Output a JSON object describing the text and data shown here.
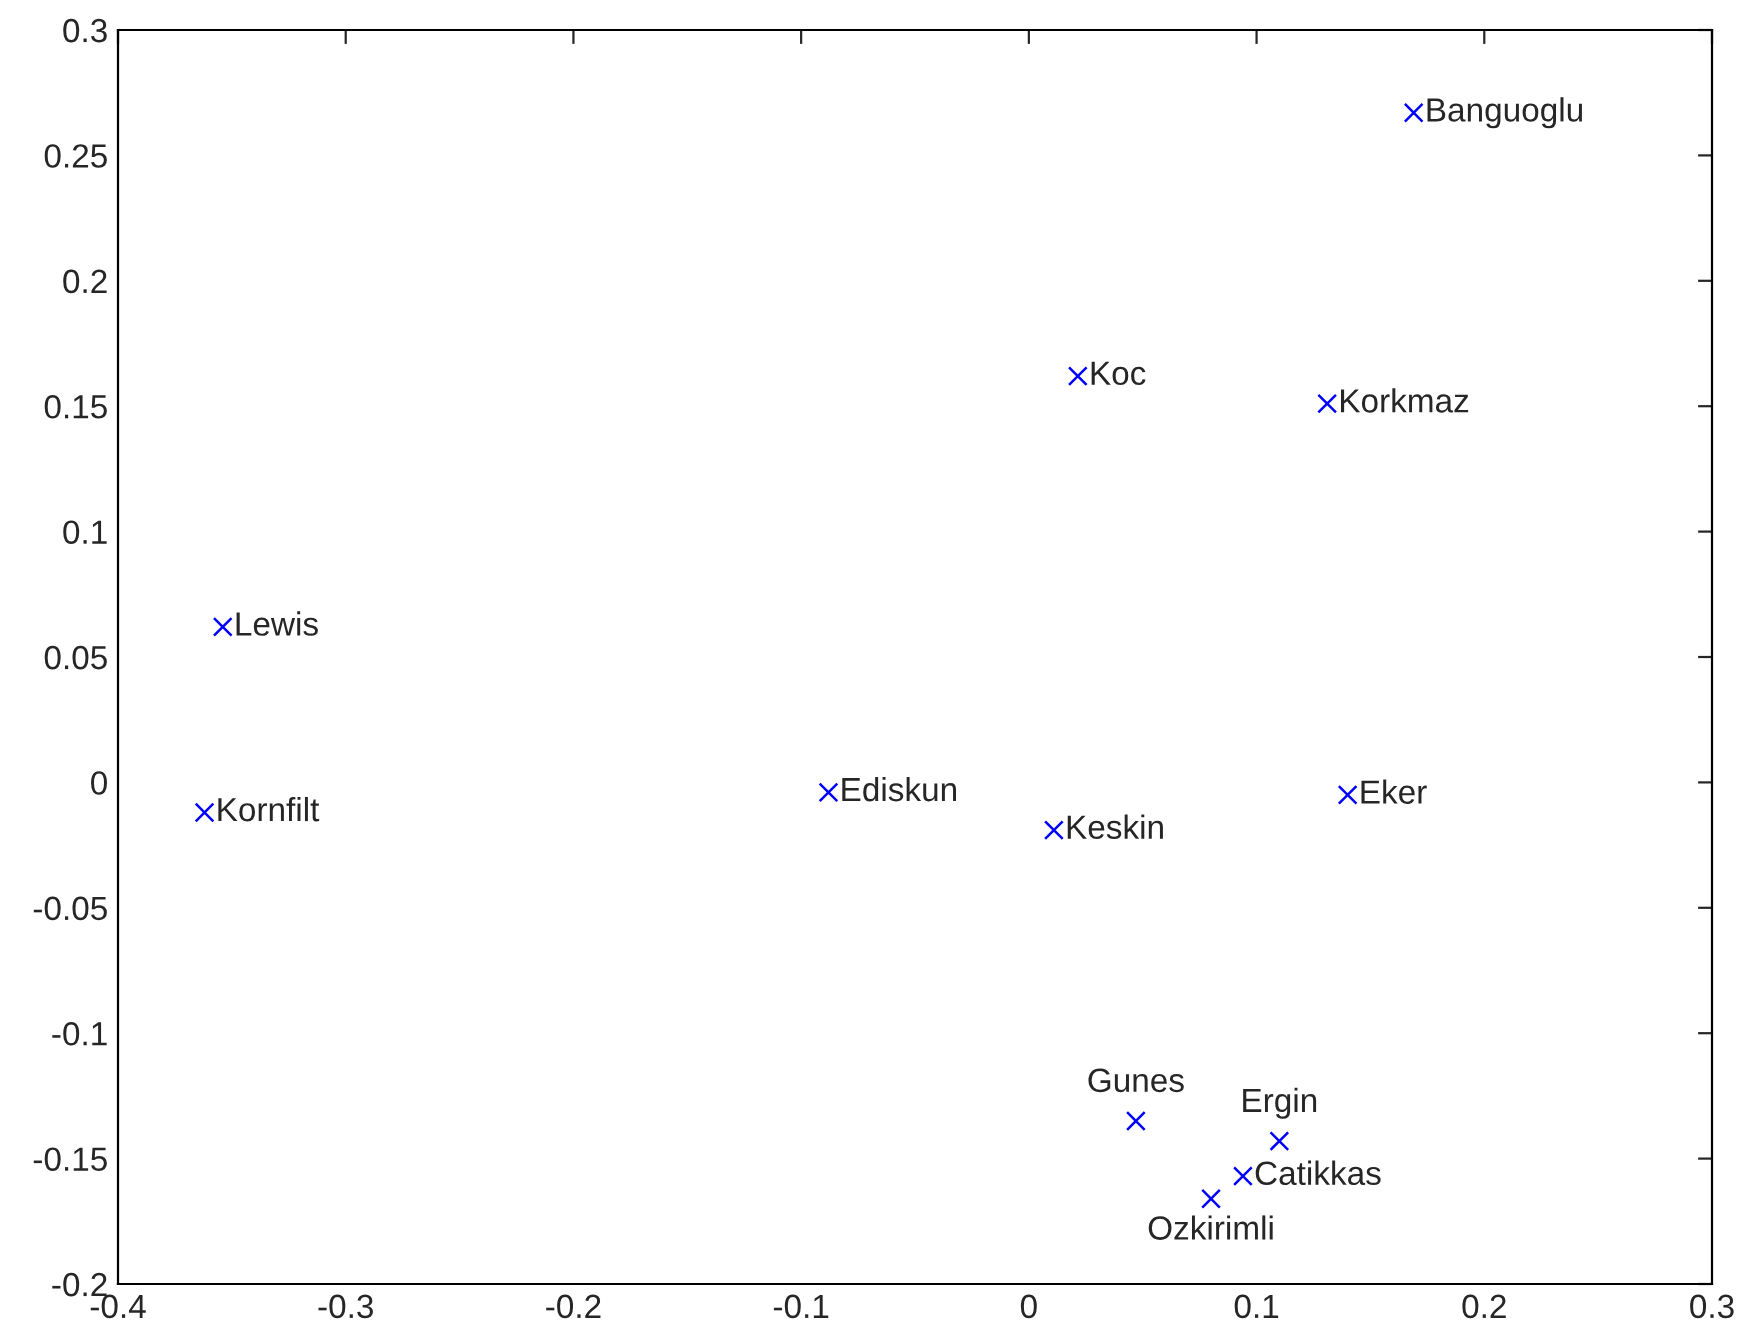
{
  "chart_data": {
    "type": "scatter",
    "marker": "cross",
    "grid": false,
    "x": [
      0.169,
      0.0215,
      0.131,
      -0.354,
      -0.362,
      -0.088,
      0.011,
      0.14,
      0.047,
      0.11,
      0.094,
      0.08
    ],
    "series": [
      {
        "color": "#0000ff",
        "values": [
          0.267,
          0.162,
          0.151,
          0.062,
          -0.012,
          -0.004,
          -0.019,
          -0.005,
          -0.135,
          -0.143,
          -0.157,
          -0.166
        ]
      }
    ],
    "annotations": [
      {
        "text": "Banguoglu",
        "x": 0.169,
        "y": 0.267
      },
      {
        "text": "Koc",
        "x": 0.0215,
        "y": 0.162
      },
      {
        "text": "Korkmaz",
        "x": 0.131,
        "y": 0.151
      },
      {
        "text": "Lewis",
        "x": -0.354,
        "y": 0.062
      },
      {
        "text": "Kornfilt",
        "x": -0.362,
        "y": -0.012
      },
      {
        "text": "Ediskun",
        "x": -0.088,
        "y": -0.004
      },
      {
        "text": "Keskin",
        "x": 0.011,
        "y": -0.019
      },
      {
        "text": "Eker",
        "x": 0.14,
        "y": -0.005
      },
      {
        "text": "Gunes",
        "x": 0.047,
        "y": -0.135
      },
      {
        "text": "Ergin",
        "x": 0.11,
        "y": -0.143
      },
      {
        "text": "Catikkas",
        "x": 0.094,
        "y": -0.157
      },
      {
        "text": "Ozkirimli",
        "x": 0.08,
        "y": -0.166
      }
    ],
    "xlim": [
      -0.4,
      0.3
    ],
    "xticks": [
      -0.4,
      -0.3,
      -0.2,
      -0.1,
      0,
      0.1,
      0.2,
      0.3
    ],
    "ylim": [
      -0.2,
      0.3
    ],
    "yticks": [
      -0.2,
      -0.15,
      -0.1,
      -0.05,
      0,
      0.05,
      0.1,
      0.15,
      0.2,
      0.25,
      0.3
    ]
  }
}
